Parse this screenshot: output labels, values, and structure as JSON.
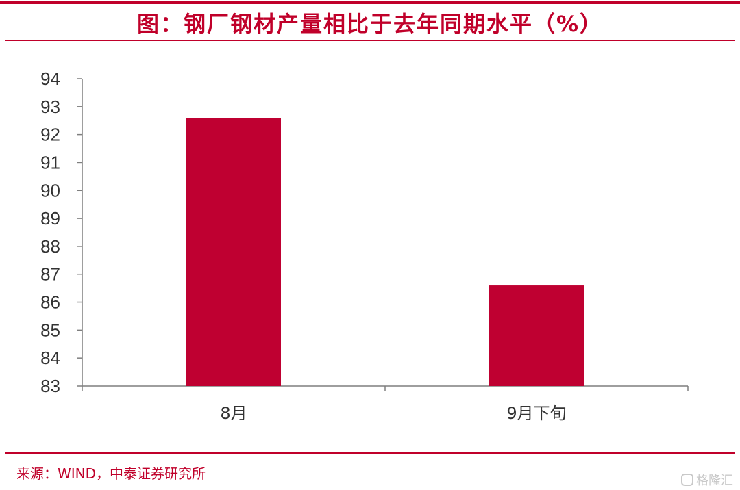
{
  "header": {
    "title": "图：钢厂钢材产量相比于去年同期水平（%）"
  },
  "footer": {
    "source": "来源：WIND，中泰证券研究所",
    "watermark": "格隆汇"
  },
  "colors": {
    "accent": "#c0002a",
    "bar": "#bf0031",
    "axis": "#7f7f7f"
  },
  "chart_data": {
    "type": "bar",
    "title": "图：钢厂钢材产量相比于去年同期水平（%）",
    "categories": [
      "8月",
      "9月下旬"
    ],
    "values": [
      92.6,
      86.6
    ],
    "ylim": [
      83,
      94
    ],
    "yticks": [
      "83",
      "84",
      "85",
      "86",
      "87",
      "88",
      "89",
      "90",
      "91",
      "92",
      "93",
      "94"
    ],
    "xlabel": "",
    "ylabel": "",
    "grid": false,
    "legend": "none"
  }
}
